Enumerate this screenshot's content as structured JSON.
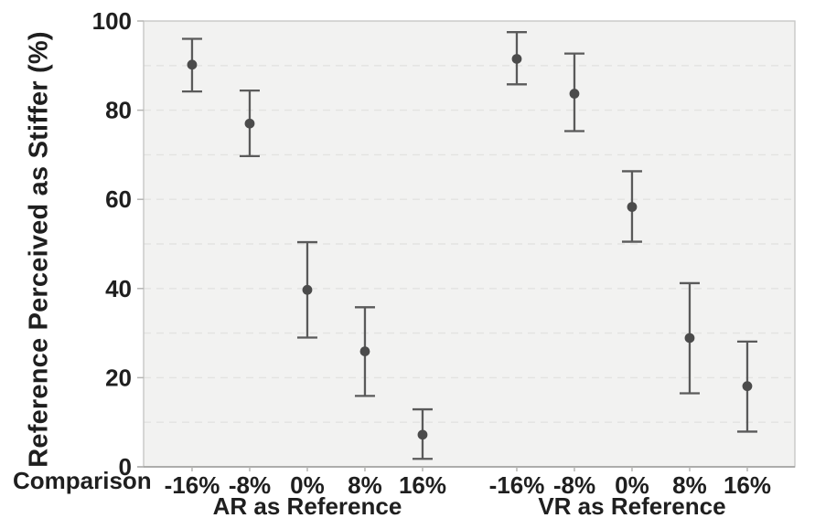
{
  "chart_data": {
    "type": "scatter",
    "subtype": "point-estimates-with-error-bars",
    "ylabel": "Reference Perceived as Stiffer (%)",
    "xlabel": "Comparison",
    "ylim": [
      0,
      100
    ],
    "yticks": [
      0,
      20,
      40,
      60,
      80,
      100
    ],
    "minor_gridline_step": 10,
    "grid": "horizontal-dashed",
    "legend": "none",
    "groups": [
      {
        "label": "AR as Reference",
        "categories": [
          "-16%",
          "-8%",
          "0%",
          "8%",
          "16%"
        ],
        "means": [
          90.2,
          77.0,
          39.7,
          25.9,
          7.2
        ],
        "ci_low": [
          84.2,
          69.7,
          29.0,
          15.9,
          1.8
        ],
        "ci_high": [
          96.0,
          84.4,
          50.4,
          35.8,
          12.9
        ]
      },
      {
        "label": "VR as Reference",
        "categories": [
          "-16%",
          "-8%",
          "0%",
          "8%",
          "16%"
        ],
        "means": [
          91.5,
          83.7,
          58.3,
          28.9,
          18.1
        ],
        "ci_low": [
          85.8,
          75.3,
          50.5,
          16.5,
          7.9
        ],
        "ci_high": [
          97.5,
          92.7,
          66.3,
          41.2,
          28.1
        ]
      }
    ],
    "colors": {
      "marker": "#4b4b4b",
      "error_bar": "#5a5a5a",
      "plot_background": "#f2f2f1",
      "gridline": "#e3e3e1",
      "plot_border": "#c4c4c2",
      "axis_line": "#9a9a98",
      "tick_mark": "#b5b5b3",
      "text": "#1f1f1f"
    }
  }
}
